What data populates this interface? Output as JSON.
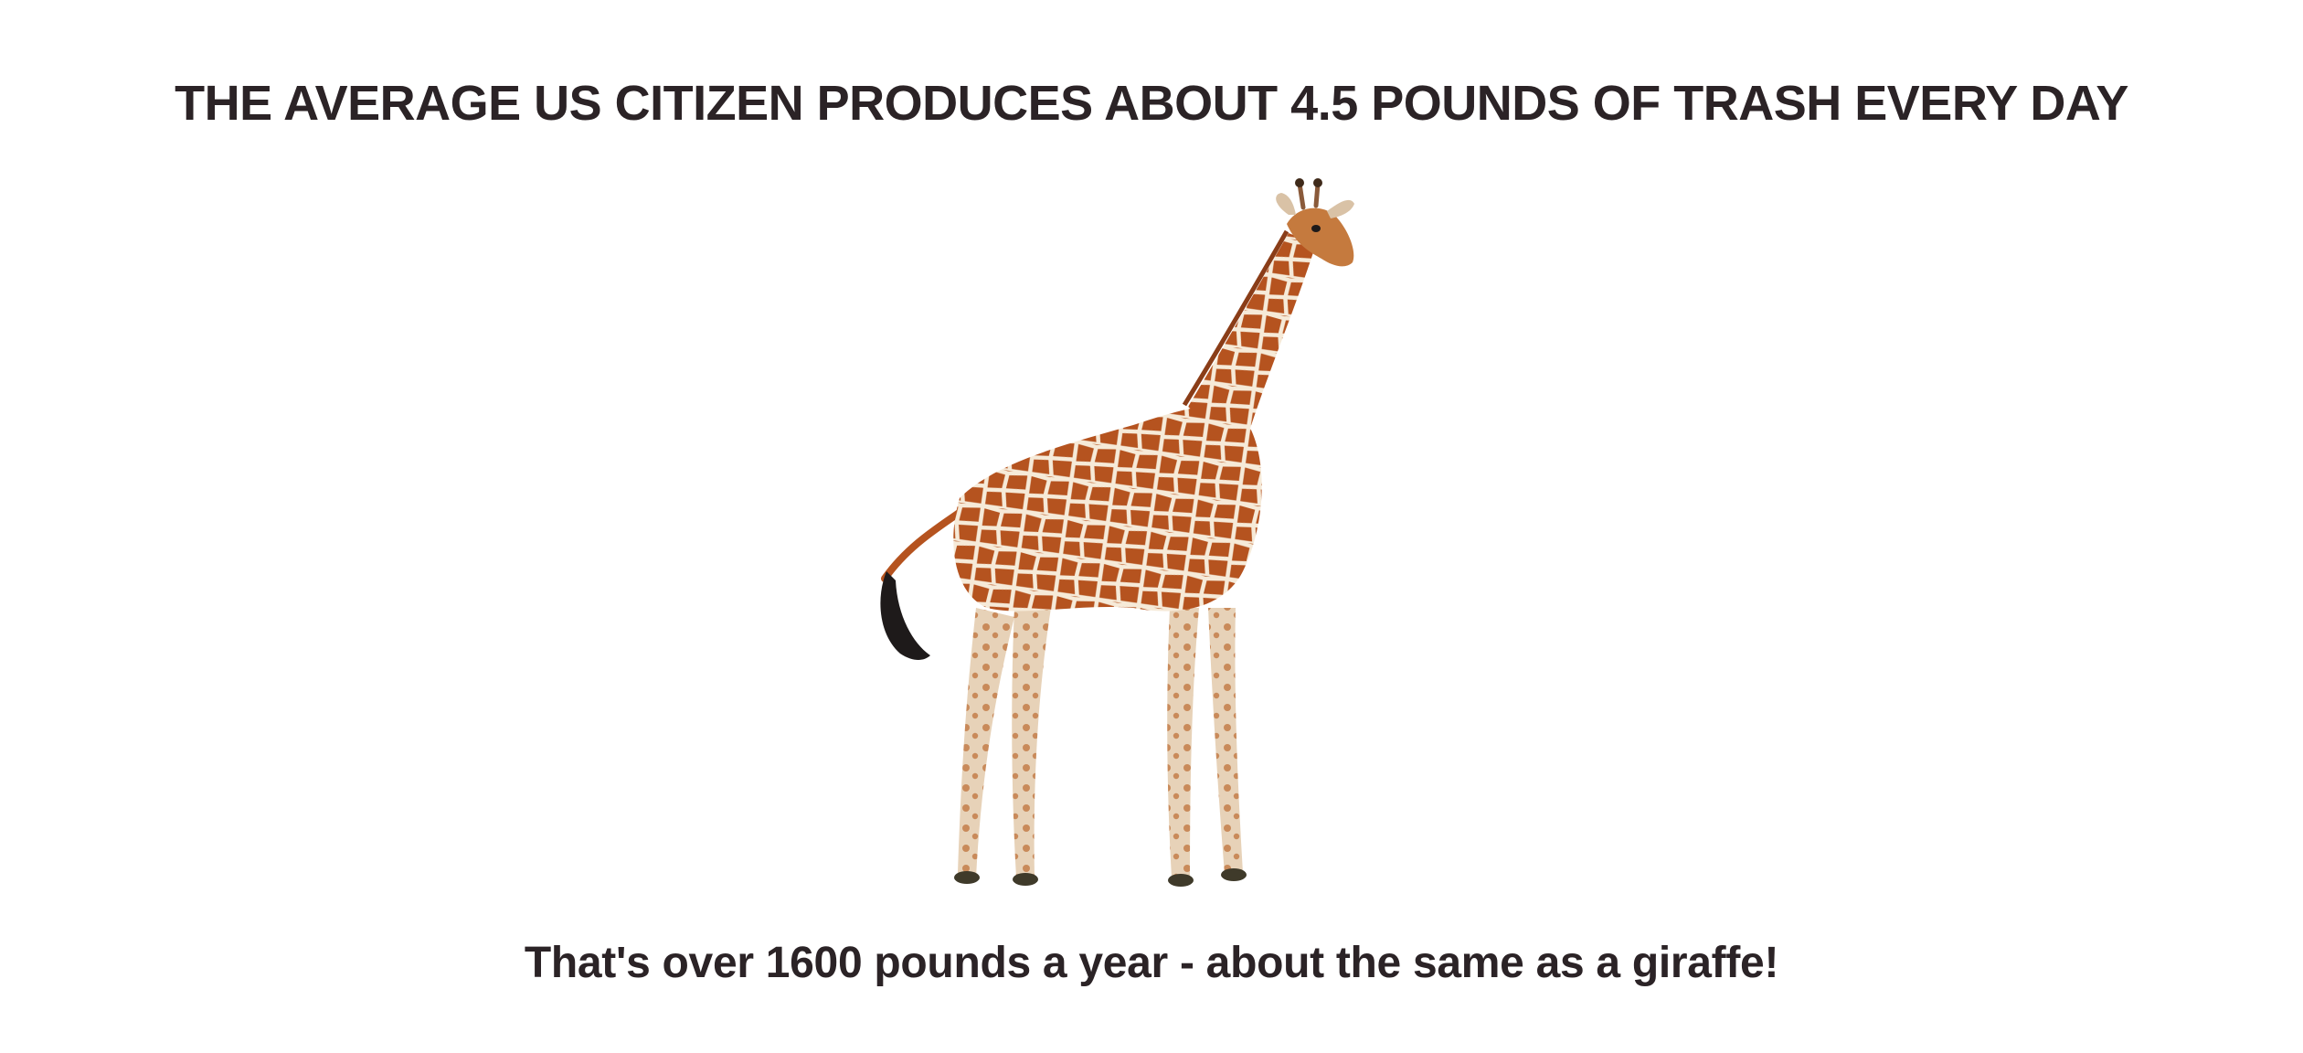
{
  "headline": "THE AVERAGE US CITIZEN PRODUCES ABOUT 4.5 POUNDS OF TRASH EVERY DAY",
  "caption": "That's over 1600 pounds a year - about the same as a giraffe!",
  "illustration": {
    "subject": "giraffe-icon",
    "colors": {
      "coat": "#b5531f",
      "pattern_lines": "#f6ead8",
      "legs": "#e7d2b8",
      "tail_tuft": "#1e1a1a",
      "hooves": "#3f3a2a",
      "text": "#2b2326",
      "background": "#ffffff"
    }
  }
}
